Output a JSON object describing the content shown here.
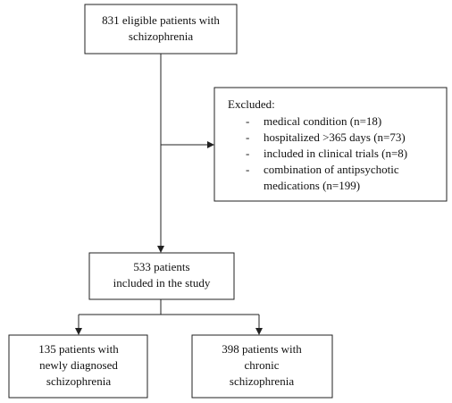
{
  "nodes": [
    {
      "lines": [
        "831 eligible patients with",
        "schizophrenia"
      ]
    },
    {
      "title": "Excluded:",
      "bullet": "-",
      "items": [
        [
          "medical condition (n=18)"
        ],
        [
          "hospitalized >365 days (n=73)"
        ],
        [
          "included in clinical trials (n=8)"
        ],
        [
          "combination of antipsychotic",
          "medications (n=199)"
        ]
      ]
    },
    {
      "lines": [
        "533 patients",
        "included in the study"
      ]
    },
    {
      "lines": [
        "135 patients with",
        "newly diagnosed",
        "schizophrenia"
      ]
    },
    {
      "lines": [
        "398 patients with",
        "chronic",
        "schizophrenia"
      ]
    }
  ]
}
